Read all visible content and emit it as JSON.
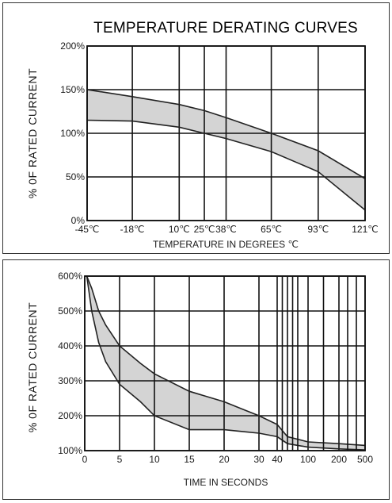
{
  "chart_data": [
    {
      "type": "area",
      "title": "TEMPERATURE DERATING CURVES",
      "xlabel": "TEMPERATURE IN DEGREES ℃",
      "ylabel": "% 0F RATED CURRENT",
      "x_ticks": [
        "-45℃",
        "-18℃",
        "10℃",
        "25℃",
        "38℃",
        "65℃",
        "93℃",
        "121℃"
      ],
      "x_tick_values": [
        -45,
        -18,
        10,
        25,
        38,
        65,
        93,
        121
      ],
      "xlim": [
        -45,
        121
      ],
      "y_ticks": [
        "0%",
        "50%",
        "100%",
        "150%",
        "200%"
      ],
      "y_tick_values": [
        0,
        50,
        100,
        150,
        200
      ],
      "ylim": [
        0,
        200
      ],
      "grid": true,
      "band": {
        "x": [
          -45,
          -18,
          10,
          25,
          38,
          65,
          93,
          121
        ],
        "upper": [
          150,
          142,
          133,
          126,
          118,
          100,
          80,
          48
        ],
        "lower": [
          115,
          114,
          107,
          100,
          94,
          79,
          56,
          12
        ]
      }
    },
    {
      "type": "area",
      "xlabel": "TIME IN SECONDS",
      "ylabel": "% 0F RATED CURRENT",
      "x_ticks": [
        "0",
        "5",
        "10",
        "15",
        "20",
        "30",
        "40",
        "100",
        "200",
        "500"
      ],
      "x_tick_values": [
        0,
        5,
        10,
        15,
        20,
        30,
        40,
        100,
        200,
        500
      ],
      "y_ticks": [
        "100%",
        "200%",
        "300%",
        "400%",
        "500%",
        "600%"
      ],
      "y_tick_values": [
        100,
        200,
        300,
        400,
        500,
        600
      ],
      "ylim": [
        100,
        600
      ],
      "grid": true,
      "band": {
        "x": [
          0.3,
          1,
          2,
          3,
          5,
          8,
          10,
          15,
          20,
          25,
          30,
          40,
          60,
          100,
          200,
          500
        ],
        "upper": [
          600,
          565,
          500,
          460,
          400,
          350,
          320,
          270,
          240,
          220,
          200,
          175,
          140,
          125,
          120,
          115
        ],
        "lower": [
          600,
          500,
          410,
          355,
          290,
          240,
          200,
          160,
          160,
          155,
          150,
          140,
          120,
          110,
          105,
          102
        ]
      }
    }
  ]
}
